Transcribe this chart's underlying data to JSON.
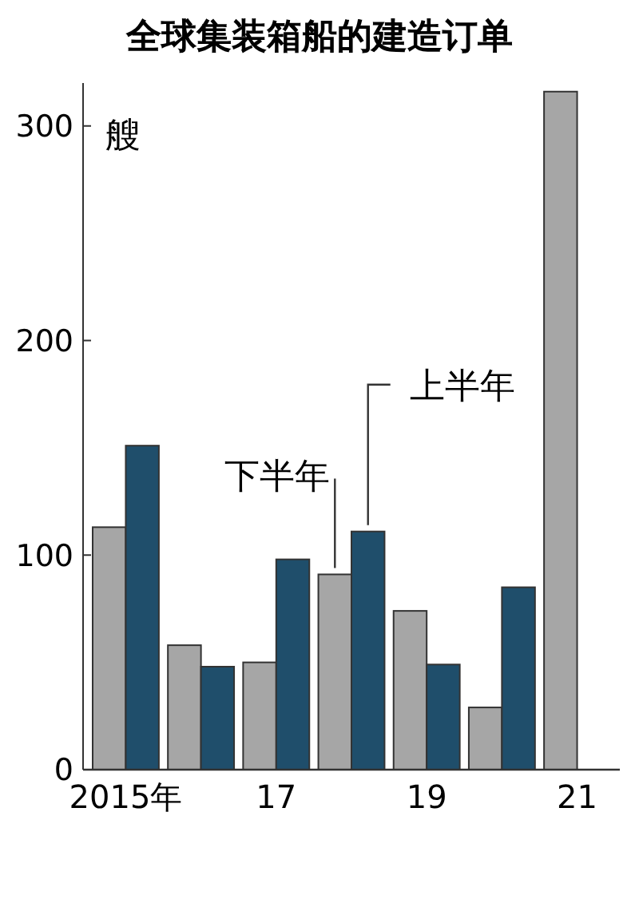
{
  "chart_data": {
    "type": "bar",
    "title": "全球集装箱船的建造订单",
    "ylabel": "艘",
    "categories": [
      "2015年",
      null,
      "17",
      null,
      "19",
      null,
      "21"
    ],
    "series": [
      {
        "name": "下半年",
        "color": "#a6a6a6",
        "values": [
          113,
          58,
          50,
          91,
          74,
          29,
          316
        ]
      },
      {
        "name": "上半年",
        "color": "#1f4e6b",
        "values": [
          151,
          48,
          98,
          111,
          49,
          85,
          null
        ]
      }
    ],
    "ylim": [
      0,
      320
    ],
    "yticks": [
      0,
      100,
      200,
      300
    ],
    "grid": false
  }
}
